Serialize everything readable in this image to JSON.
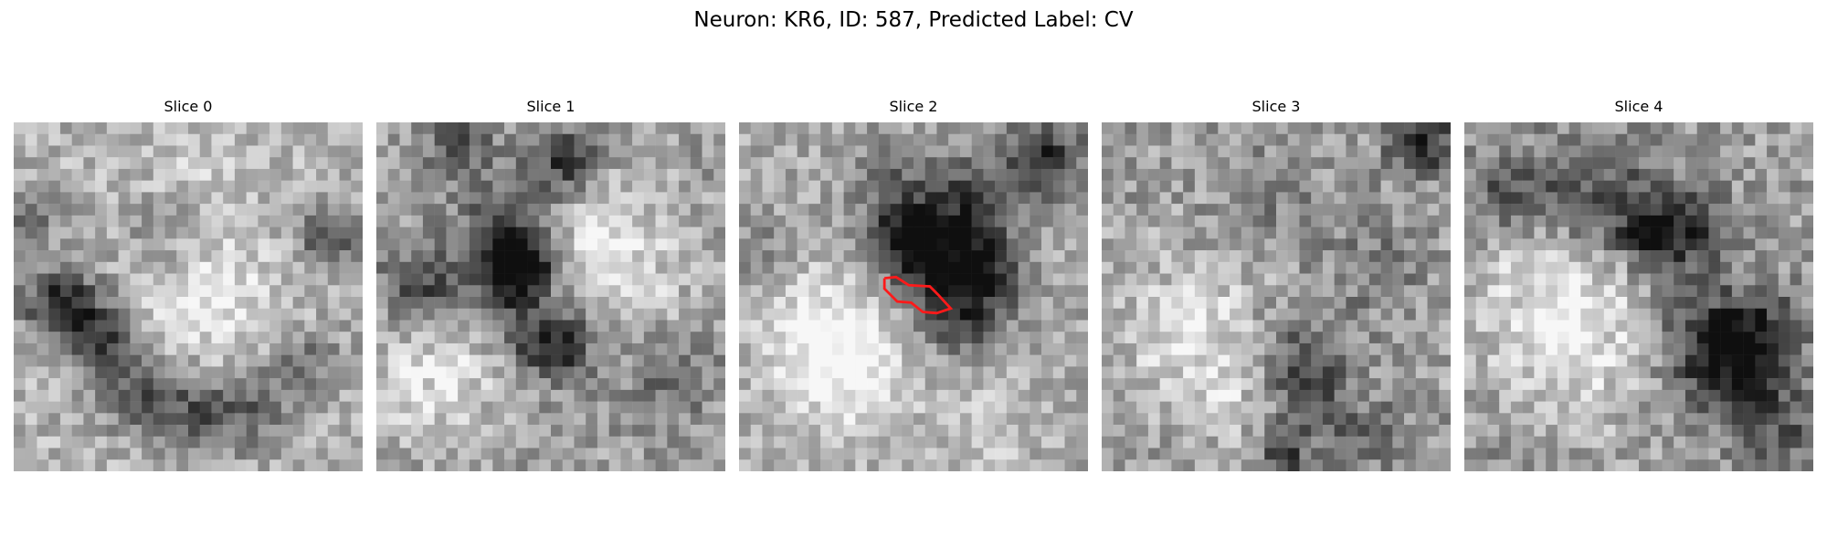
{
  "figure": {
    "title": "Neuron: KR6, ID: 587, Predicted Label: CV"
  },
  "panels": [
    {
      "title": "Slice 0"
    },
    {
      "title": "Slice 1"
    },
    {
      "title": "Slice 2"
    },
    {
      "title": "Slice 3"
    },
    {
      "title": "Slice 4"
    }
  ],
  "contour_color": "#ff1a1a",
  "image_style": "grayscale noisy pixel grid, 30 by 30"
}
